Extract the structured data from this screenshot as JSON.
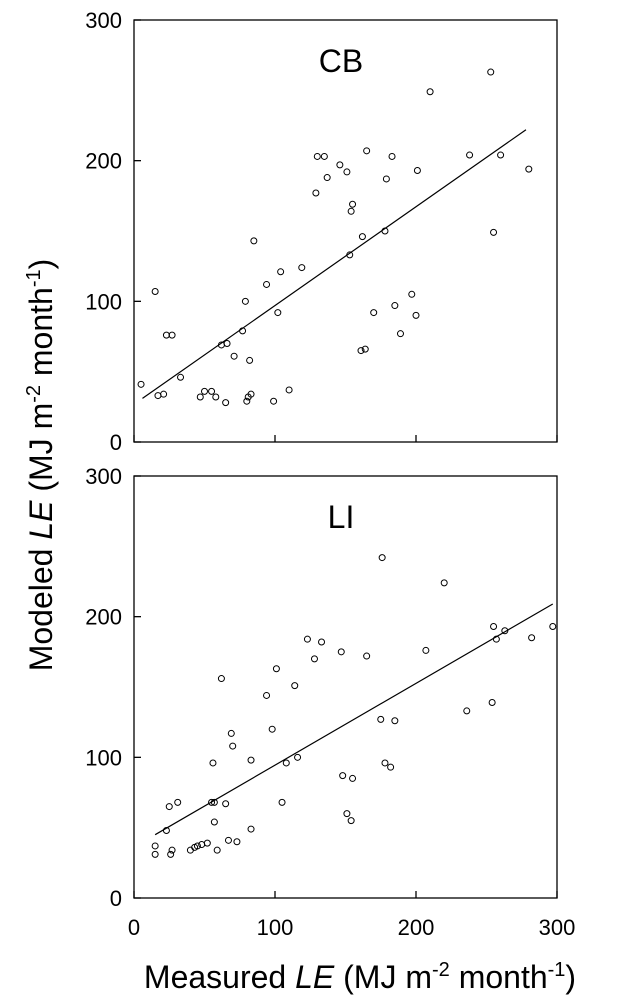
{
  "chart_data": [
    {
      "type": "scatter",
      "title": "CB",
      "xlim": [
        0,
        300
      ],
      "ylim": [
        0,
        300
      ],
      "xticks": [
        0,
        100,
        200,
        300
      ],
      "yticks": [
        0,
        100,
        200,
        300
      ],
      "xtick_labels": [
        "0",
        "100",
        "200",
        "300"
      ],
      "ytick_labels": [
        "0",
        "100",
        "200",
        "300"
      ],
      "x_tick_labels_shown": false,
      "grid": false,
      "points": [
        [
          5,
          41
        ],
        [
          15,
          107
        ],
        [
          17,
          33
        ],
        [
          21,
          34
        ],
        [
          23,
          76
        ],
        [
          27,
          76
        ],
        [
          33,
          46
        ],
        [
          47,
          32
        ],
        [
          50,
          36
        ],
        [
          55,
          36
        ],
        [
          58,
          32
        ],
        [
          62,
          69
        ],
        [
          65,
          28
        ],
        [
          66,
          70
        ],
        [
          71,
          61
        ],
        [
          77,
          79
        ],
        [
          79,
          100
        ],
        [
          80,
          29
        ],
        [
          81,
          32
        ],
        [
          82,
          58
        ],
        [
          83,
          34
        ],
        [
          85,
          143
        ],
        [
          94,
          112
        ],
        [
          99,
          29
        ],
        [
          102,
          92
        ],
        [
          104,
          121
        ],
        [
          110,
          37
        ],
        [
          119,
          124
        ],
        [
          129,
          177
        ],
        [
          130,
          203
        ],
        [
          135,
          203
        ],
        [
          137,
          188
        ],
        [
          146,
          197
        ],
        [
          151,
          192
        ],
        [
          153,
          133
        ],
        [
          154,
          164
        ],
        [
          155,
          169
        ],
        [
          161,
          65
        ],
        [
          162,
          146
        ],
        [
          164,
          66
        ],
        [
          165,
          207
        ],
        [
          170,
          92
        ],
        [
          178,
          150
        ],
        [
          179,
          187
        ],
        [
          183,
          203
        ],
        [
          185,
          97
        ],
        [
          189,
          77
        ],
        [
          197,
          105
        ],
        [
          200,
          90
        ],
        [
          201,
          193
        ],
        [
          210,
          249
        ],
        [
          238,
          204
        ],
        [
          253,
          263
        ],
        [
          255,
          149
        ],
        [
          260,
          204
        ],
        [
          280,
          194
        ]
      ],
      "fit_line": {
        "x": [
          6,
          278
        ],
        "y": [
          31,
          222
        ]
      }
    },
    {
      "type": "scatter",
      "title": "LI",
      "xlabel": "Measured LE (MJ m-2 month-1)",
      "ylabel": "Modeled LE (MJ m-2 month-1)",
      "xlim": [
        0,
        300
      ],
      "ylim": [
        0,
        300
      ],
      "xticks": [
        0,
        100,
        200,
        300
      ],
      "yticks": [
        0,
        100,
        200,
        300
      ],
      "xtick_labels": [
        "0",
        "100",
        "200",
        "300"
      ],
      "ytick_labels": [
        "0",
        "100",
        "200",
        "300"
      ],
      "grid": false,
      "points": [
        [
          15,
          31
        ],
        [
          15,
          37
        ],
        [
          23,
          48
        ],
        [
          25,
          65
        ],
        [
          26,
          31
        ],
        [
          27,
          34
        ],
        [
          31,
          68
        ],
        [
          40,
          34
        ],
        [
          43,
          36
        ],
        [
          45,
          37
        ],
        [
          48,
          38
        ],
        [
          52,
          39
        ],
        [
          55,
          68
        ],
        [
          56,
          96
        ],
        [
          57,
          54
        ],
        [
          57,
          68
        ],
        [
          59,
          34
        ],
        [
          62,
          156
        ],
        [
          65,
          67
        ],
        [
          67,
          41
        ],
        [
          69,
          117
        ],
        [
          70,
          108
        ],
        [
          73,
          40
        ],
        [
          83,
          98
        ],
        [
          83,
          49
        ],
        [
          94,
          144
        ],
        [
          98,
          120
        ],
        [
          101,
          163
        ],
        [
          105,
          68
        ],
        [
          108,
          96
        ],
        [
          114,
          151
        ],
        [
          116,
          100
        ],
        [
          123,
          184
        ],
        [
          128,
          170
        ],
        [
          133,
          182
        ],
        [
          147,
          175
        ],
        [
          148,
          87
        ],
        [
          151,
          60
        ],
        [
          154,
          55
        ],
        [
          155,
          85
        ],
        [
          165,
          172
        ],
        [
          175,
          127
        ],
        [
          176,
          242
        ],
        [
          178,
          96
        ],
        [
          182,
          93
        ],
        [
          185,
          126
        ],
        [
          207,
          176
        ],
        [
          220,
          224
        ],
        [
          236,
          133
        ],
        [
          254,
          139
        ],
        [
          255,
          193
        ],
        [
          257,
          184
        ],
        [
          263,
          190
        ],
        [
          282,
          185
        ],
        [
          297,
          193
        ]
      ],
      "fit_line": {
        "x": [
          15,
          297
        ],
        "y": [
          45,
          209
        ]
      }
    }
  ],
  "labels": {
    "ylabel_prefix": "Modeled ",
    "ylabel_var": "LE",
    "ylabel_units_1": " (MJ m",
    "ylabel_exp_1": "-2",
    "ylabel_units_2": " month",
    "ylabel_exp_2": "-1",
    "ylabel_close": ")",
    "xlabel_prefix": "Measured ",
    "xlabel_var": "LE",
    "xlabel_units_1": " (MJ m",
    "xlabel_exp_1": "-2",
    "xlabel_units_2": " month",
    "xlabel_exp_2": "-1",
    "xlabel_close": ")"
  }
}
